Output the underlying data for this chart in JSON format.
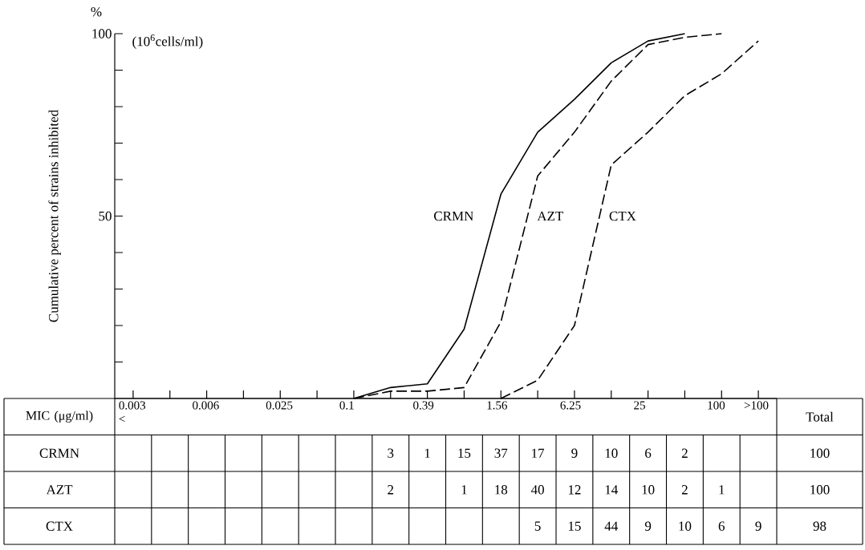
{
  "chart_data": [
    {
      "type": "line",
      "ylabel": "Cumulative percent of strains inhibited",
      "categories": [
        null,
        null,
        null,
        null,
        null,
        null,
        null,
        null,
        null,
        null,
        null,
        null,
        null,
        null,
        null,
        null,
        null,
        null
      ],
      "ylim": [
        0,
        100
      ],
      "yticks": [
        {
          "value": 10,
          "label": null
        },
        {
          "value": 20,
          "label": null
        },
        {
          "value": 30,
          "label": null
        },
        {
          "value": 40,
          "label": null
        },
        50,
        {
          "value": 60,
          "label": null
        },
        {
          "value": 70,
          "label": null
        },
        {
          "value": 80,
          "label": null
        },
        {
          "value": 90,
          "label": null
        },
        100
      ],
      "legend": false,
      "grid": false,
      "marker": "none",
      "annotations": [
        "%",
        "(10$^{6}$cells/ml)"
      ],
      "series": [
        {
          "name": "CRMN",
          "color": "#000000",
          "line_style": "solid",
          "values": [
            null,
            null,
            null,
            null,
            null,
            null,
            0,
            3,
            4,
            19,
            56,
            73,
            82,
            92,
            98,
            100,
            null,
            null
          ]
        },
        {
          "name": "AZT",
          "color": "#000000",
          "line_style": "dashed",
          "values": [
            null,
            null,
            null,
            null,
            null,
            null,
            0,
            2,
            2,
            3,
            21,
            61,
            73,
            87,
            97,
            99,
            100,
            null
          ]
        },
        {
          "name": "CTX",
          "color": "#000000",
          "line_style": "dashed",
          "values": [
            null,
            null,
            null,
            null,
            null,
            null,
            null,
            null,
            null,
            null,
            0,
            5,
            20,
            64,
            73,
            83,
            89,
            98
          ]
        }
      ]
    },
    {
      "type": "heatmap",
      "xlabel": "MIC (μg/ml)",
      "categories": [
        "0.003 <",
        null,
        "0.006",
        null,
        "0.025",
        null,
        "0.1",
        null,
        "0.39",
        null,
        "1.56",
        null,
        "6.25",
        null,
        "25",
        null,
        "100",
        ">100"
      ],
      "y_categories": [
        "CRMN",
        "AZT",
        "CTX"
      ],
      "cells": [
        [
          null,
          null,
          null,
          null,
          null,
          null,
          null,
          3,
          1,
          15,
          37,
          17,
          9,
          10,
          6,
          2,
          null,
          null
        ],
        [
          null,
          null,
          null,
          null,
          null,
          null,
          null,
          2,
          null,
          1,
          18,
          40,
          12,
          14,
          10,
          2,
          1,
          null
        ],
        [
          null,
          null,
          null,
          null,
          null,
          null,
          null,
          null,
          null,
          null,
          null,
          5,
          15,
          44,
          9,
          10,
          6,
          9
        ]
      ],
      "data_labels": true,
      "annotations": [
        "Total",
        "100",
        "100",
        "98"
      ]
    }
  ]
}
